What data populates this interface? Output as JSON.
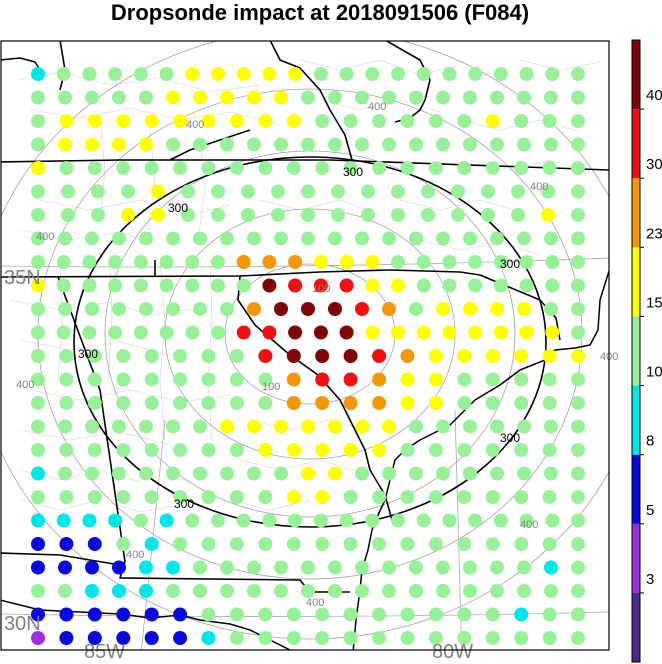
{
  "title": "Dropsonde impact at 2018091506 (F084)",
  "latitude_labels": [
    "35N",
    "30N"
  ],
  "longitude_labels": [
    "85W",
    "80W"
  ],
  "range_ring_labels": {
    "inner": "100",
    "middle": "300",
    "outer": "400"
  },
  "colorbar": {
    "ticks": [
      "3",
      "5",
      "8",
      "10",
      "15",
      "23",
      "30",
      "40"
    ],
    "colors": [
      "#4b2a8c",
      "#9b30d8",
      "#0a0ad8",
      "#00e5e5",
      "#98f198",
      "#ffff00",
      "#f2960a",
      "#ee1111",
      "#7d0707"
    ]
  },
  "impact_grid": {
    "legend": "g=10-15, y=15-23, o=23-30, r=30-40, d=>40, c=8-10, b=5-8, p=3-5, .=none",
    "rows": [
      "cgggggyyyyyggggggggggg",
      "gggggyyyyyggggggggggg",
      "gyyyyyyyyyggggggyggg",
      "gyyyygggggggggggggggg",
      "yggggggggggggggggggg",
      "ggggygggggggggggggg",
      "gggyyggggggggggggyg",
      "ggggggggggggggggggggg",
      "ggggggggoooyyygggggggg",
      "yggggggggdrrryyggggggg",
      "ggggggggodddrogyyyygg",
      "ggggggggrrdddyyyyyyyyg",
      "ggggggggrdddroyyyyyy",
      "gggggggggorroyyggggg",
      "gggggggggooooyyggggg",
      "gggggggyyyyyyyggggggg",
      "ggggggggyyyyyggggggg",
      "cgggggggggyyggggggggg",
      "gggggggggyyggggggggg",
      "ccccgcgggggggggggggggg",
      "bbbgcggggggggggggggg",
      "bbbbccgggggggggggggcg",
      "ggcccgggggggggggggggg",
      "bbbbbbgggggggggggcgg",
      "pbbbbbcggggggggggggg"
    ]
  }
}
